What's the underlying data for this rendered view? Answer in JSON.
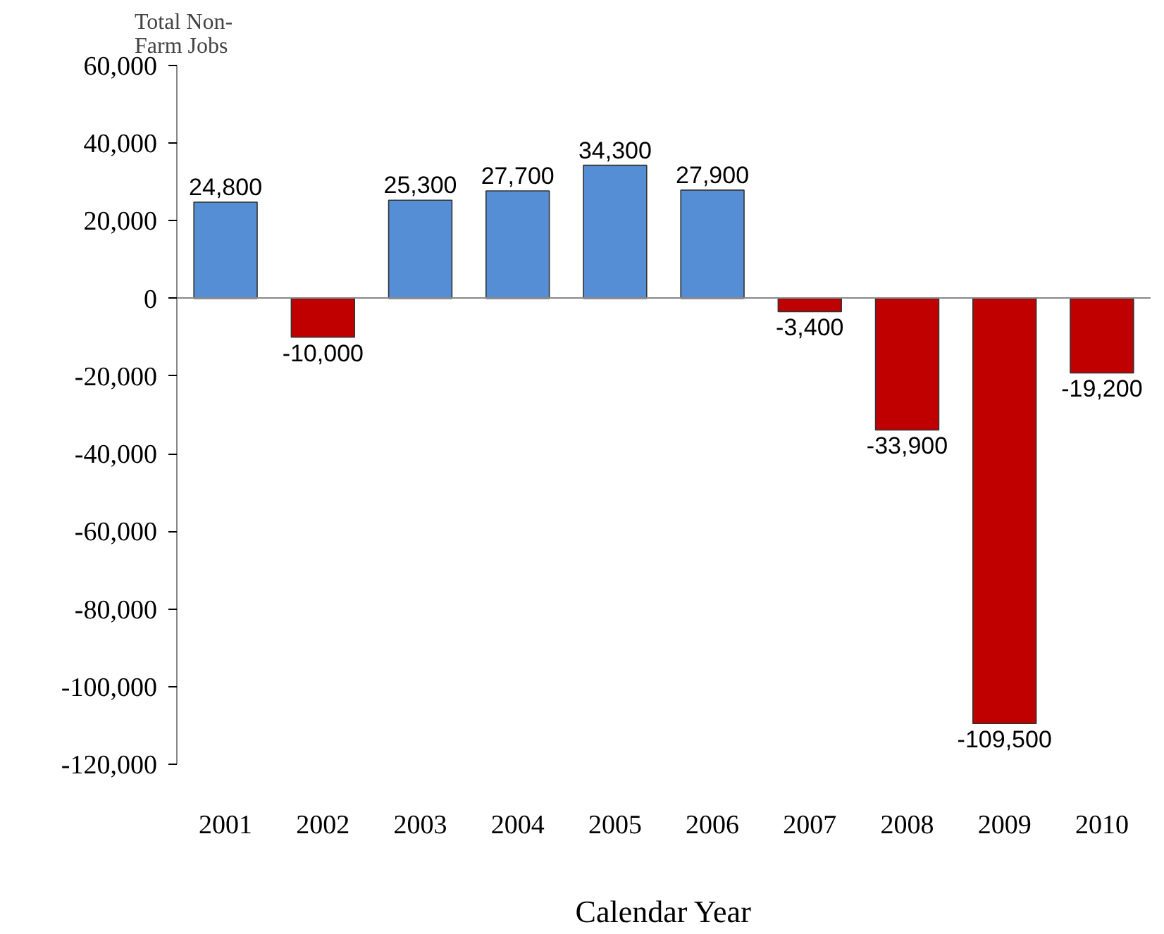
{
  "chart_data": {
    "type": "bar",
    "ylabel": "Total Non-\nFarm Jobs",
    "xlabel": "Calendar Year",
    "categories": [
      "2001",
      "2002",
      "2003",
      "2004",
      "2005",
      "2006",
      "2007",
      "2008",
      "2009",
      "2010"
    ],
    "values": [
      24800,
      -10000,
      25300,
      27700,
      34300,
      27900,
      -3400,
      -33900,
      -109500,
      -19200
    ],
    "colors": [
      "#558ed5",
      "#c00000",
      "#558ed5",
      "#558ed5",
      "#558ed5",
      "#558ed5",
      "#c00000",
      "#c00000",
      "#c00000",
      "#c00000"
    ],
    "ylim": [
      -120000,
      60000
    ],
    "yticks": [
      {
        "value": -120000,
        "label": "-120,000"
      },
      {
        "value": -100000,
        "label": "-100,000"
      },
      {
        "value": -80000,
        "label": "-80,000"
      },
      {
        "value": -60000,
        "label": "-60,000"
      },
      {
        "value": -40000,
        "label": "-40,000"
      },
      {
        "value": -20000,
        "label": "-20,000"
      },
      0,
      {
        "value": 20000,
        "label": "20,000"
      },
      {
        "value": 40000,
        "label": "40,000"
      },
      {
        "value": 60000,
        "label": "60,000"
      }
    ],
    "value_labels": [
      "24,800",
      "-10,000",
      "25,300",
      "27,700",
      "34,300",
      "27,900",
      "-3,400",
      "-33,900",
      "-109,500",
      "-19,200"
    ]
  }
}
